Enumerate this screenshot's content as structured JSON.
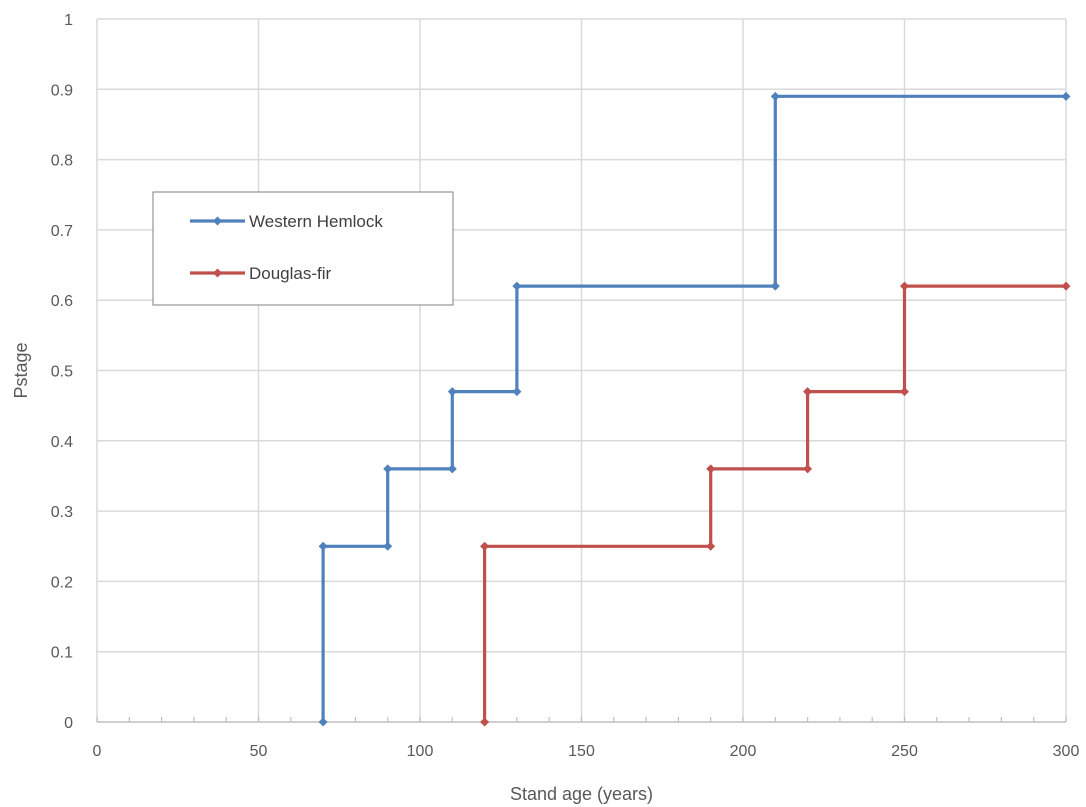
{
  "chart_data": {
    "type": "line",
    "step": true,
    "title": "",
    "xlabel": "Stand age (years)",
    "ylabel": "Pstage",
    "xlim": [
      0,
      300
    ],
    "ylim": [
      0,
      1
    ],
    "x_ticks": [
      0,
      50,
      100,
      150,
      200,
      250,
      300
    ],
    "y_ticks": [
      0,
      0.1,
      0.2,
      0.3,
      0.4,
      0.5,
      0.6,
      0.7,
      0.8,
      0.9,
      1
    ],
    "grid": true,
    "legend_position": "left",
    "series": [
      {
        "name": "Western Hemlock",
        "color": "#4f81bd",
        "points": [
          [
            70,
            0
          ],
          [
            70,
            0.25
          ],
          [
            90,
            0.25
          ],
          [
            90,
            0.36
          ],
          [
            110,
            0.36
          ],
          [
            110,
            0.47
          ],
          [
            130,
            0.47
          ],
          [
            130,
            0.62
          ],
          [
            210,
            0.62
          ],
          [
            210,
            0.89
          ],
          [
            300,
            0.89
          ]
        ]
      },
      {
        "name": "Douglas-fir",
        "color": "#c0504d",
        "points": [
          [
            120,
            0
          ],
          [
            120,
            0.25
          ],
          [
            190,
            0.25
          ],
          [
            190,
            0.36
          ],
          [
            220,
            0.36
          ],
          [
            220,
            0.47
          ],
          [
            250,
            0.47
          ],
          [
            250,
            0.62
          ],
          [
            300,
            0.62
          ]
        ]
      }
    ]
  }
}
